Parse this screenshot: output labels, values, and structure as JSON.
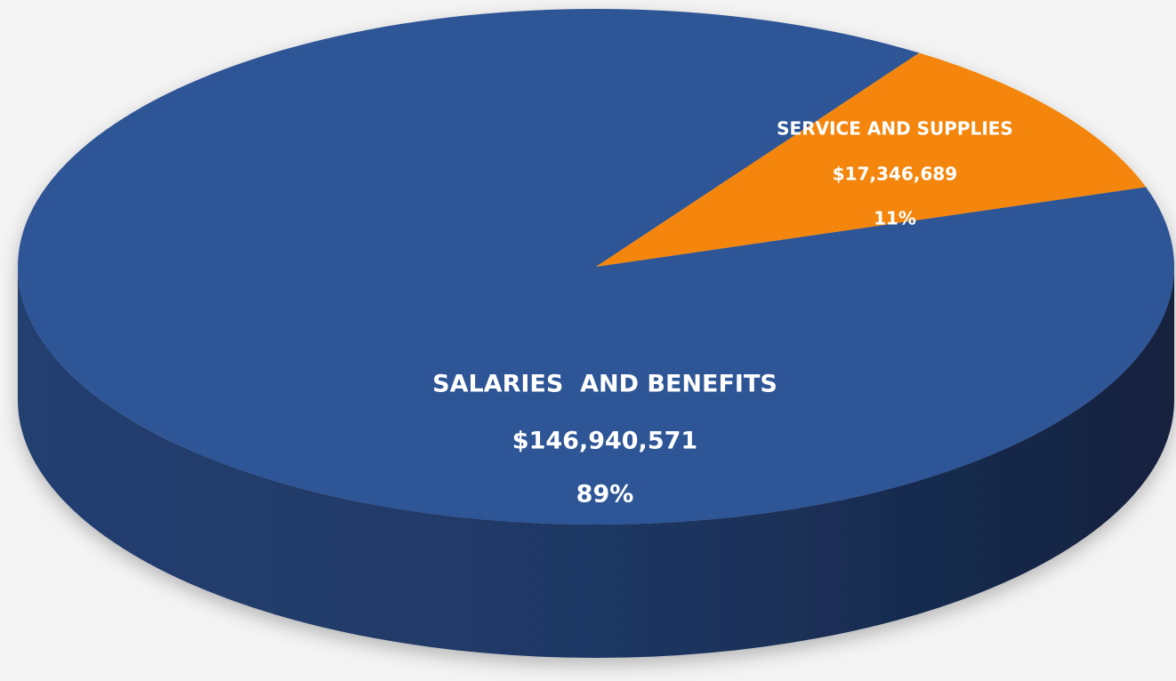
{
  "chart_data": {
    "type": "pie",
    "categories": [
      "SALARIES  AND BENEFITS",
      "SERVICE AND SUPPLIES"
    ],
    "values": [
      146940571,
      17346689
    ],
    "value_labels": [
      "$146,940,571",
      "$17,346,689"
    ],
    "percent_labels": [
      "89%",
      "11%"
    ],
    "colors": [
      "#2f5496",
      "#f4860a"
    ]
  }
}
